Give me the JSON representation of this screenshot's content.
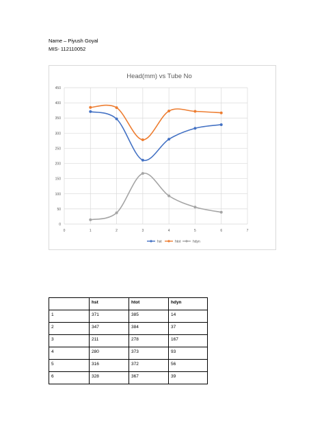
{
  "document": {
    "name_line": "Name – Piyush Goyal",
    "mis_line": "MIS- 112110052"
  },
  "chart_data": {
    "type": "line",
    "title": "Head(mm) vs Tube No",
    "xlabel": "",
    "ylabel": "",
    "xlim": [
      0,
      7
    ],
    "ylim": [
      0,
      450
    ],
    "x_ticks": [
      0,
      1,
      2,
      3,
      4,
      5,
      6,
      7
    ],
    "y_ticks": [
      0,
      50,
      100,
      150,
      200,
      250,
      300,
      350,
      400,
      450
    ],
    "grid": true,
    "legend_position": "bottom",
    "smooth": true,
    "x": [
      1,
      2,
      3,
      4,
      5,
      6
    ],
    "series": [
      {
        "name": "hst",
        "values": [
          371,
          347,
          211,
          280,
          316,
          328
        ],
        "color": "#4472C4"
      },
      {
        "name": "htot",
        "values": [
          385,
          384,
          278,
          373,
          372,
          367
        ],
        "color": "#ED7D31"
      },
      {
        "name": "hdyn",
        "values": [
          14,
          37,
          167,
          93,
          56,
          39
        ],
        "color": "#A5A5A5"
      }
    ]
  },
  "table": {
    "headers": [
      "",
      "hst",
      "htot",
      "hdyn"
    ],
    "rows": [
      [
        "1",
        "371",
        "385",
        "14"
      ],
      [
        "2",
        "347",
        "384",
        "37"
      ],
      [
        "3",
        "211",
        "278",
        "167"
      ],
      [
        "4",
        "280",
        "373",
        "93"
      ],
      [
        "5",
        "316",
        "372",
        "56"
      ],
      [
        "6",
        "328",
        "367",
        "39"
      ]
    ]
  }
}
